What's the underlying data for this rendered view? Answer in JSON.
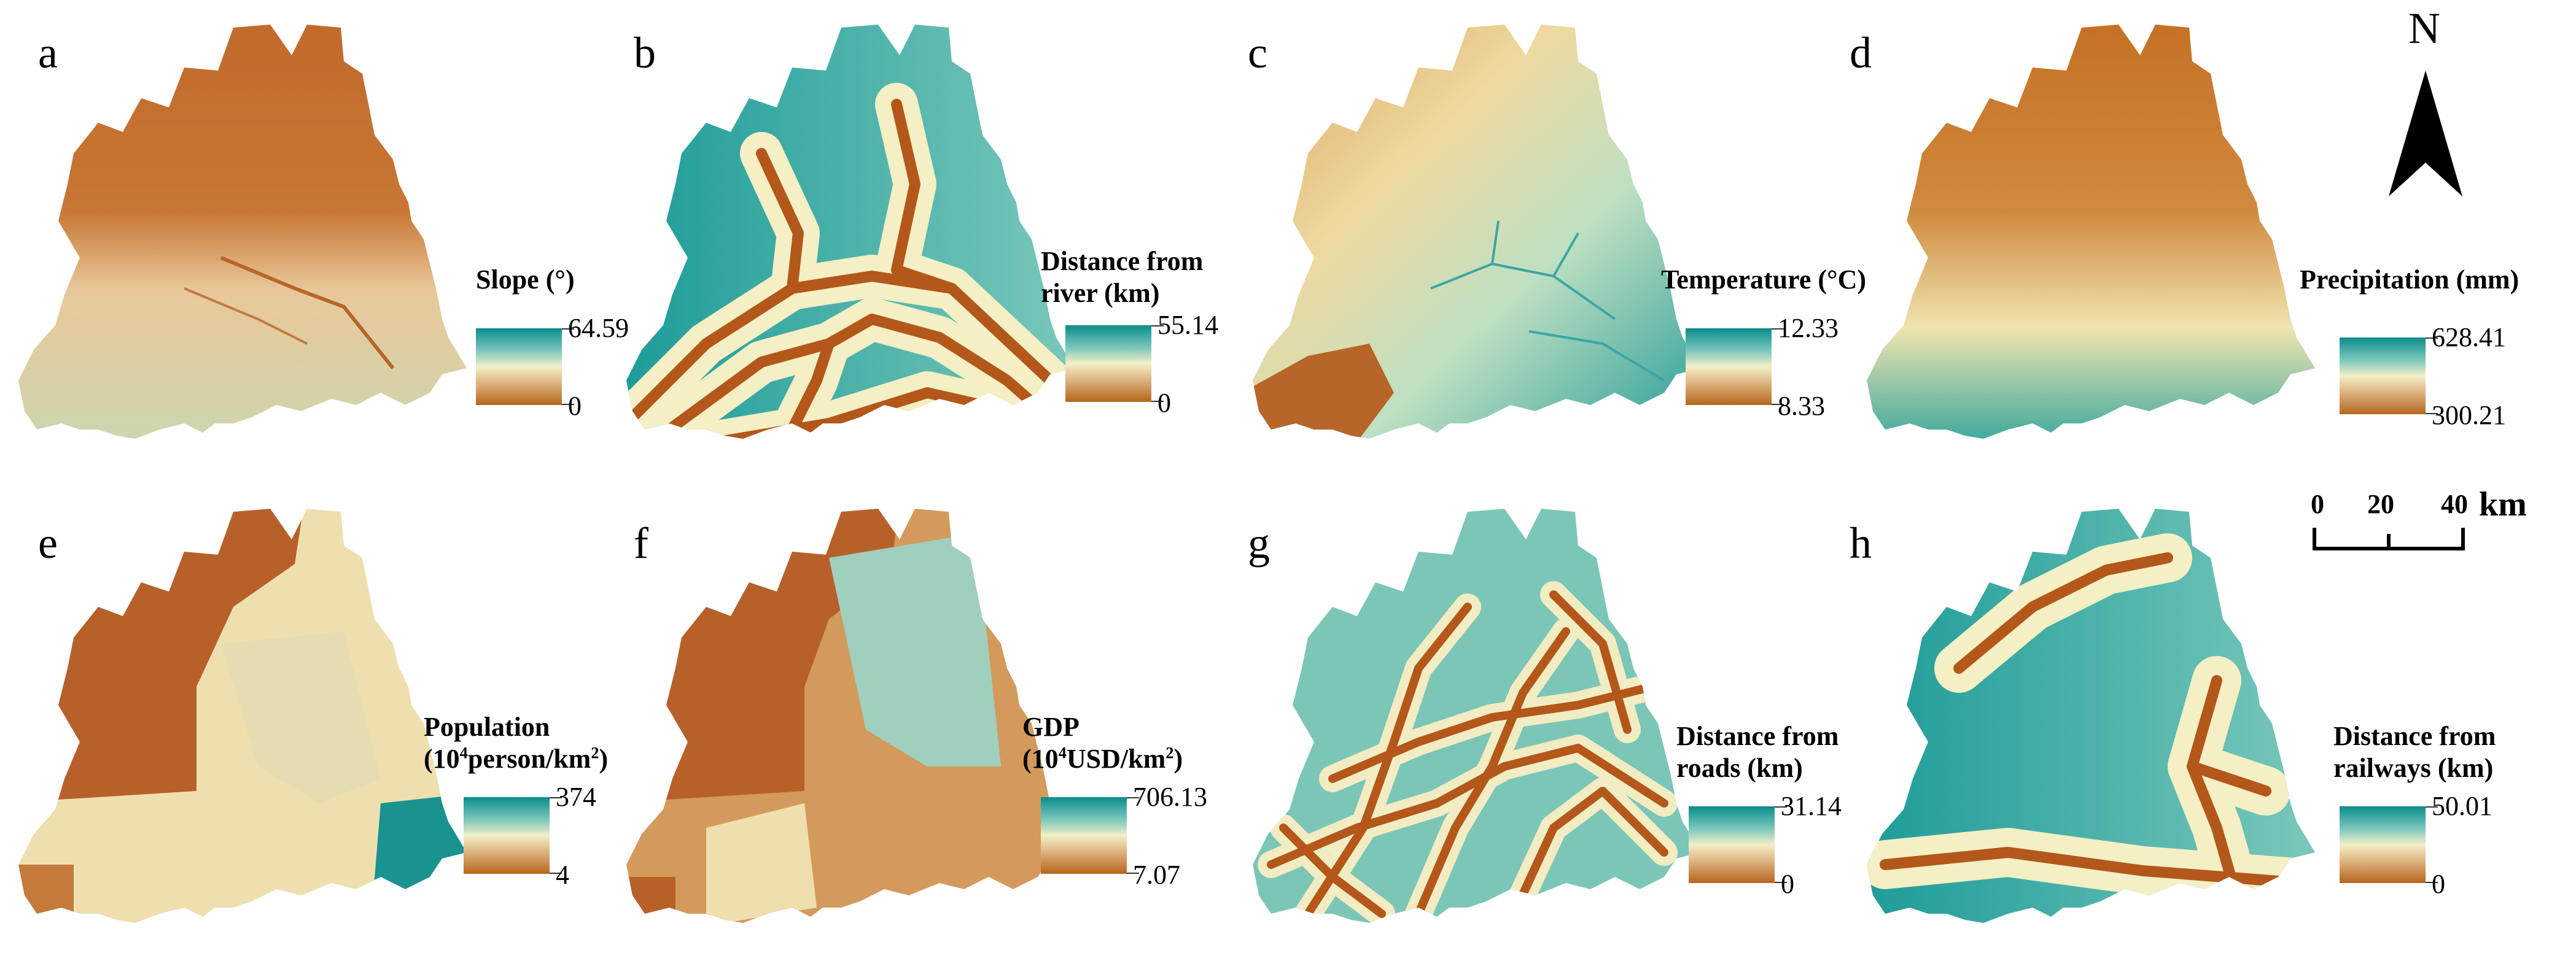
{
  "north_arrow": {
    "label": "N"
  },
  "scale_bar": {
    "ticks": [
      "0",
      "20",
      "40"
    ],
    "unit": "km"
  },
  "colors": {
    "ramp_high": "#0a8c8c",
    "ramp_mid": "#f3efc7",
    "ramp_low": "#b5651d"
  },
  "panels": [
    {
      "letter": "a",
      "legend_line1": "Slope (°)",
      "legend_line2": "",
      "max": "64.59",
      "min": "0"
    },
    {
      "letter": "b",
      "legend_line1": "Distance from",
      "legend_line2": "river (km)",
      "max": "55.14",
      "min": "0"
    },
    {
      "letter": "c",
      "legend_line1": "Temperature (°C)",
      "legend_line2": "",
      "max": "12.33",
      "min": "8.33"
    },
    {
      "letter": "d",
      "legend_line1": "Precipitation (mm)",
      "legend_line2": "",
      "max": "628.41",
      "min": "300.21"
    },
    {
      "letter": "e",
      "legend_line1": "Population",
      "legend_line2": "(10⁴person/km²)",
      "max": "374",
      "min": "4"
    },
    {
      "letter": "f",
      "legend_line1": "GDP",
      "legend_line2": "(10⁴USD/km²)",
      "max": "706.13",
      "min": "7.07"
    },
    {
      "letter": "g",
      "legend_line1": "Distance from",
      "legend_line2": "roads (km)",
      "max": "31.14",
      "min": "0"
    },
    {
      "letter": "h",
      "legend_line1": "Distance from",
      "legend_line2": "railways (km)",
      "max": "50.01",
      "min": "0"
    }
  ]
}
